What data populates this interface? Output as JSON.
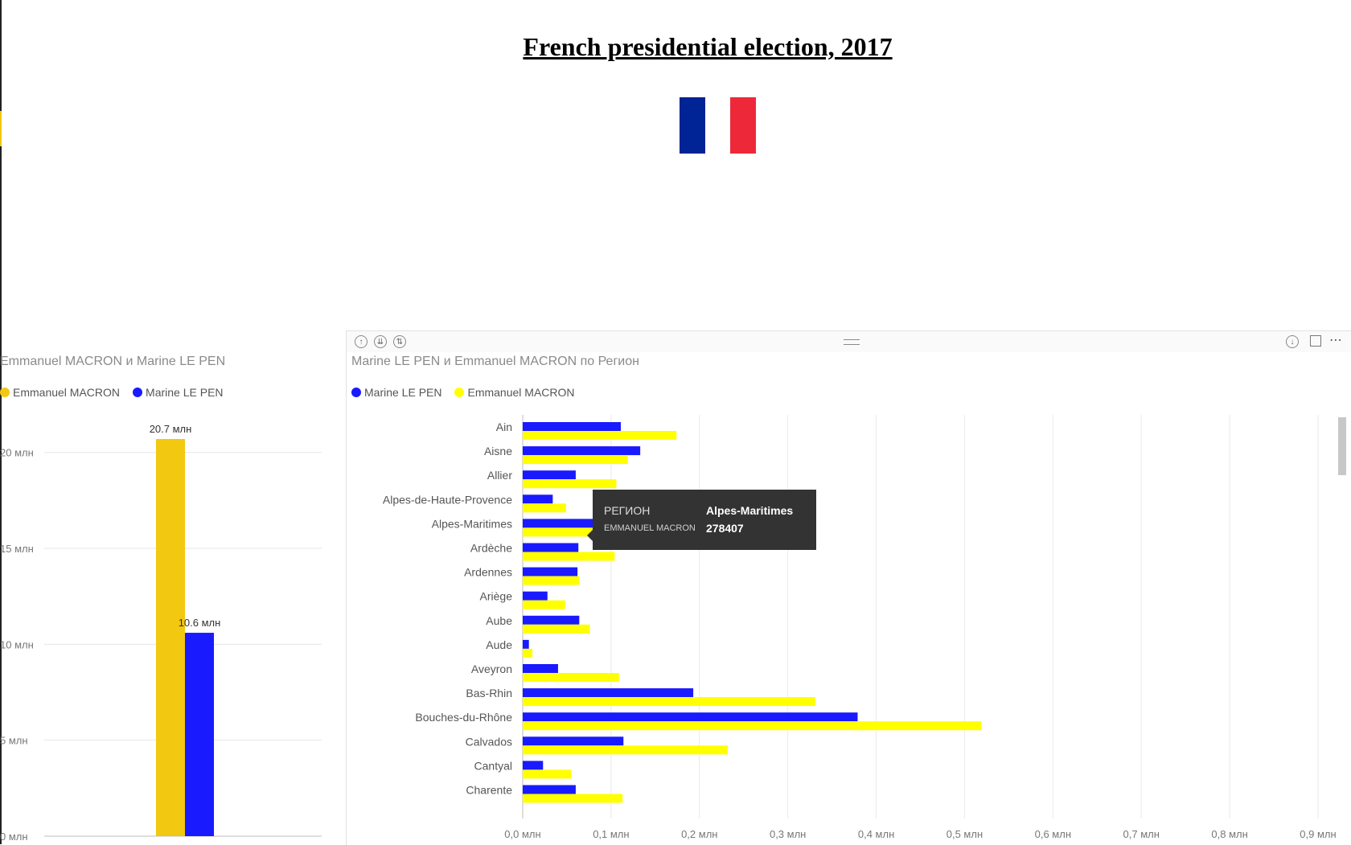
{
  "page": {
    "title": "French presidential election, 2017"
  },
  "flag": {
    "blue": "#002395",
    "white": "#ffffff",
    "red": "#ED2939"
  },
  "colors": {
    "macron_left": "#F2C811",
    "macron_right": "#FFFF00",
    "lepen": "#1A1AFF"
  },
  "left_visual": {
    "title": "Emmanuel MACRON  и Marine LE PEN",
    "legend": [
      "Emmanuel MACRON",
      "Marine LE PEN"
    ]
  },
  "right_visual": {
    "title": "Marine LE PEN и Emmanuel MACRON  по Регион",
    "legend": [
      "Marine LE PEN",
      "Emmanuel MACRON"
    ],
    "header_icons": [
      "drill-up-icon",
      "expand-all-icon",
      "drill-mode-icon",
      "drill-down-icon",
      "focus-mode-icon",
      "more-options-icon"
    ]
  },
  "tooltip": {
    "key1": "РЕГИОН",
    "value1": "Alpes-Maritimes",
    "key2": "EMMANUEL MACRON",
    "value2": "278407"
  },
  "chart_data": [
    {
      "type": "bar",
      "orientation": "vertical",
      "title": "Emmanuel MACRON  и Marine LE PEN",
      "series": [
        {
          "name": "Emmanuel MACRON",
          "values": [
            20.7
          ],
          "data_label": "20.7 млн"
        },
        {
          "name": "Marine LE PEN",
          "values": [
            10.6
          ],
          "data_label": "10.6 млн"
        }
      ],
      "ylim": [
        0,
        22
      ],
      "yticks": [
        0,
        5,
        10,
        15,
        20
      ],
      "ytick_labels": [
        "0 млн",
        "5 млн",
        "10 млн",
        "15 млн",
        "20 млн"
      ],
      "unit": "млн",
      "grid": true,
      "legend": "top-left"
    },
    {
      "type": "bar",
      "orientation": "horizontal",
      "title": "Marine LE PEN и Emmanuel MACRON  по Регион",
      "categories": [
        "Ain",
        "Aisne",
        "Allier",
        "Alpes-de-Haute-Provence",
        "Alpes-Maritimes",
        "Ardèche",
        "Ardennes",
        "Ariège",
        "Aube",
        "Aude",
        "Aveyron",
        "Bas-Rhin",
        "Bouches-du-Rhône",
        "Calvados",
        "Cantyal",
        "Charente"
      ],
      "series": [
        {
          "name": "Marine LE PEN",
          "values": [
            0.111,
            0.133,
            0.06,
            0.034,
            0.13,
            0.063,
            0.062,
            0.028,
            0.064,
            0.007,
            0.04,
            0.193,
            0.379,
            0.114,
            0.023,
            0.06
          ]
        },
        {
          "name": "Emmanuel MACRON",
          "values": [
            0.174,
            0.119,
            0.106,
            0.049,
            0.278,
            0.104,
            0.064,
            0.048,
            0.076,
            0.011,
            0.109,
            0.331,
            0.519,
            0.232,
            0.055,
            0.113
          ]
        }
      ],
      "xlim": [
        0,
        0.9
      ],
      "xticks": [
        0,
        0.1,
        0.2,
        0.3,
        0.4,
        0.5,
        0.6,
        0.7,
        0.8,
        0.9
      ],
      "xtick_labels": [
        "0,0 млн",
        "0,1 млн",
        "0,2 млн",
        "0,3 млн",
        "0,4 млн",
        "0,5 млн",
        "0,6 млн",
        "0,7 млн",
        "0,8 млн",
        "0,9 млн"
      ],
      "unit": "млн",
      "grid": true,
      "legend": "top-left"
    }
  ]
}
